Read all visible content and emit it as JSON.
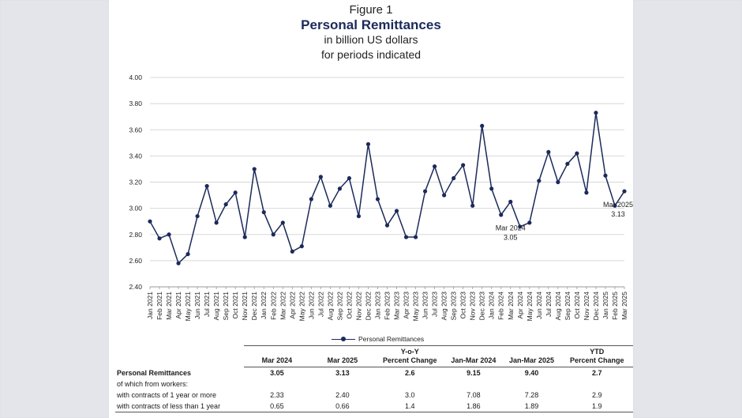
{
  "header": {
    "figure": "Figure 1",
    "title": "Personal Remittances",
    "subtitle1": "in billion US dollars",
    "subtitle2": "for periods indicated"
  },
  "colors": {
    "line": "#1b2a5a",
    "grid": "#d8d8d8",
    "title": "#1b2a5a"
  },
  "chart_data": {
    "type": "line",
    "title": "Personal Remittances",
    "ylim": [
      2.4,
      4.0
    ],
    "yticks": [
      "2.40",
      "2.60",
      "2.80",
      "3.00",
      "3.20",
      "3.40",
      "3.60",
      "3.80",
      "4.00"
    ],
    "grid": true,
    "legend_position": "bottom",
    "categories": [
      "Jan 2021",
      "Feb 2021",
      "Mar 2021",
      "Apr 2021",
      "May 2021",
      "Jun 2021",
      "Jul 2021",
      "Aug 2021",
      "Sep 2021",
      "Oct 2021",
      "Nov 2021",
      "Dec 2021",
      "Jan 2022",
      "Feb 2022",
      "Mar 2022",
      "Apr 2022",
      "May 2022",
      "Jun 2022",
      "Jul 2022",
      "Aug 2022",
      "Sep 2022",
      "Oct 2022",
      "Nov 2022",
      "Dec 2022",
      "Jan 2023",
      "Feb 2023",
      "Mar 2023",
      "Apr 2023",
      "May 2023",
      "Jun 2023",
      "Jul 2023",
      "Aug 2023",
      "Sep 2023",
      "Oct 2023",
      "Nov 2023",
      "Dec 2023",
      "Jan 2024",
      "Feb 2024",
      "Mar 2024",
      "Apr 2024",
      "May 2024",
      "Jun 2024",
      "Jul 2024",
      "Aug 2024",
      "Sep 2024",
      "Oct 2024",
      "Nov 2024",
      "Dec 2024",
      "Jan 2025",
      "Feb 2025",
      "Mar 2025"
    ],
    "series": [
      {
        "name": "Personal Remittances",
        "values": [
          2.9,
          2.77,
          2.8,
          2.58,
          2.65,
          2.94,
          3.17,
          2.89,
          3.03,
          3.12,
          2.78,
          3.3,
          2.97,
          2.8,
          2.89,
          2.67,
          2.71,
          3.07,
          3.24,
          3.02,
          3.15,
          3.23,
          2.94,
          3.49,
          3.07,
          2.87,
          2.98,
          2.78,
          2.78,
          3.13,
          3.32,
          3.1,
          3.23,
          3.33,
          3.02,
          3.63,
          3.15,
          2.95,
          3.05,
          2.86,
          2.89,
          3.21,
          3.43,
          3.2,
          3.34,
          3.42,
          3.12,
          3.73,
          3.25,
          3.02,
          3.13
        ]
      }
    ],
    "annotations": [
      {
        "label": "Mar 2024",
        "value": "3.05",
        "category": "Mar 2024"
      },
      {
        "label": "Mar 2025",
        "value": "3.13",
        "category": "Mar 2025"
      }
    ]
  },
  "table": {
    "headers": [
      {
        "l1": "",
        "l2": "Mar 2024"
      },
      {
        "l1": "",
        "l2": "Mar 2025"
      },
      {
        "l1": "Y-o-Y",
        "l2": "Percent Change"
      },
      {
        "l1": "",
        "l2": "Jan-Mar 2024"
      },
      {
        "l1": "",
        "l2": "Jan-Mar 2025"
      },
      {
        "l1": "YTD",
        "l2": "Percent Change"
      }
    ],
    "rows": [
      {
        "label": "Personal Remittances",
        "values": [
          "3.05",
          "3.13",
          "2.6",
          "9.15",
          "9.40",
          "2.7"
        ]
      },
      {
        "label": "of which from workers:",
        "values": [
          "",
          "",
          "",
          "",
          "",
          ""
        ]
      },
      {
        "label": "with contracts of 1 year or more",
        "values": [
          "2.33",
          "2.40",
          "3.0",
          "7.08",
          "7.28",
          "2.9"
        ]
      },
      {
        "label": "with contracts of less than 1 year",
        "values": [
          "0.65",
          "0.66",
          "1.4",
          "1.86",
          "1.89",
          "1.9"
        ]
      }
    ]
  }
}
